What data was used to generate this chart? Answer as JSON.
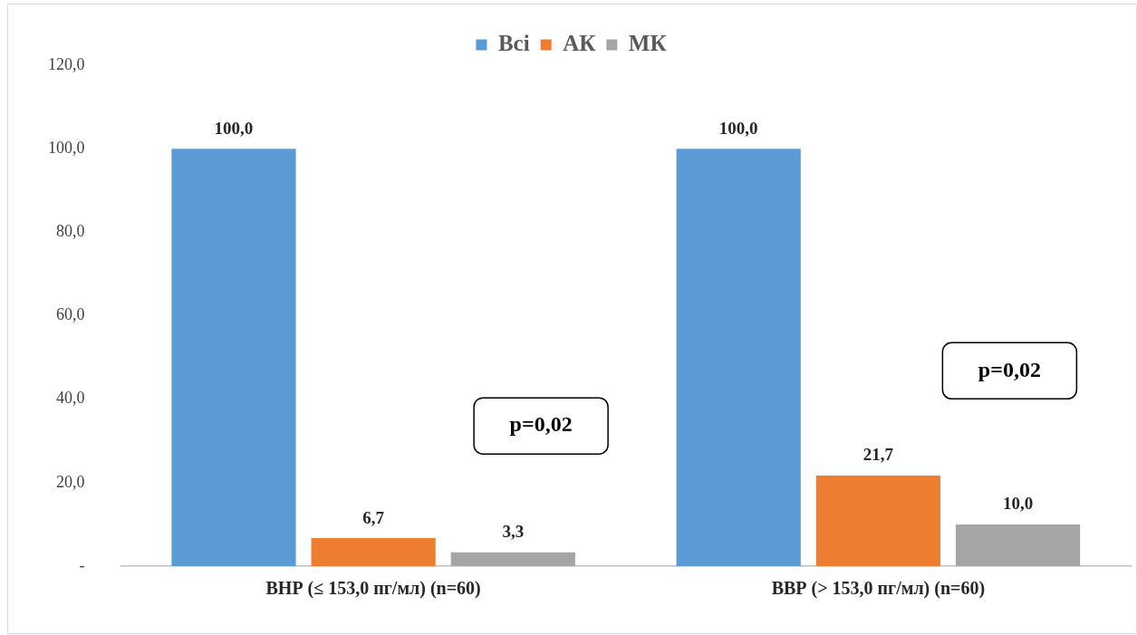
{
  "chart_data": {
    "type": "bar",
    "categories": [
      "ВНР (≤ 153,0 пг/мл) (n=60)",
      "ВВР (> 153,0 пг/мл) (n=60)"
    ],
    "series": [
      {
        "name": "Всі",
        "color": "#5b9bd5",
        "values": [
          100,
          100
        ],
        "value_labels": [
          "100,0",
          "100,0"
        ]
      },
      {
        "name": "АК",
        "color": "#ed7d31",
        "values": [
          6.7,
          21.7
        ],
        "value_labels": [
          "6,7",
          "21,7"
        ]
      },
      {
        "name": "МК",
        "color": "#a5a5a5",
        "values": [
          3.3,
          10
        ],
        "value_labels": [
          "3,3",
          "10,0"
        ]
      }
    ],
    "ylim": [
      0,
      120
    ],
    "yticks": [
      {
        "value": 0,
        "label": "-"
      },
      {
        "value": 20,
        "label": "20,0"
      },
      {
        "value": 40,
        "label": "40,0"
      },
      {
        "value": 60,
        "label": "60,0"
      },
      {
        "value": 80,
        "label": "80,0"
      },
      {
        "value": 100,
        "label": "100,0"
      },
      {
        "value": 120,
        "label": "120,0"
      }
    ],
    "grid": false,
    "legend": "top",
    "annotations": [
      "p=0,02",
      "p=0,02"
    ]
  }
}
